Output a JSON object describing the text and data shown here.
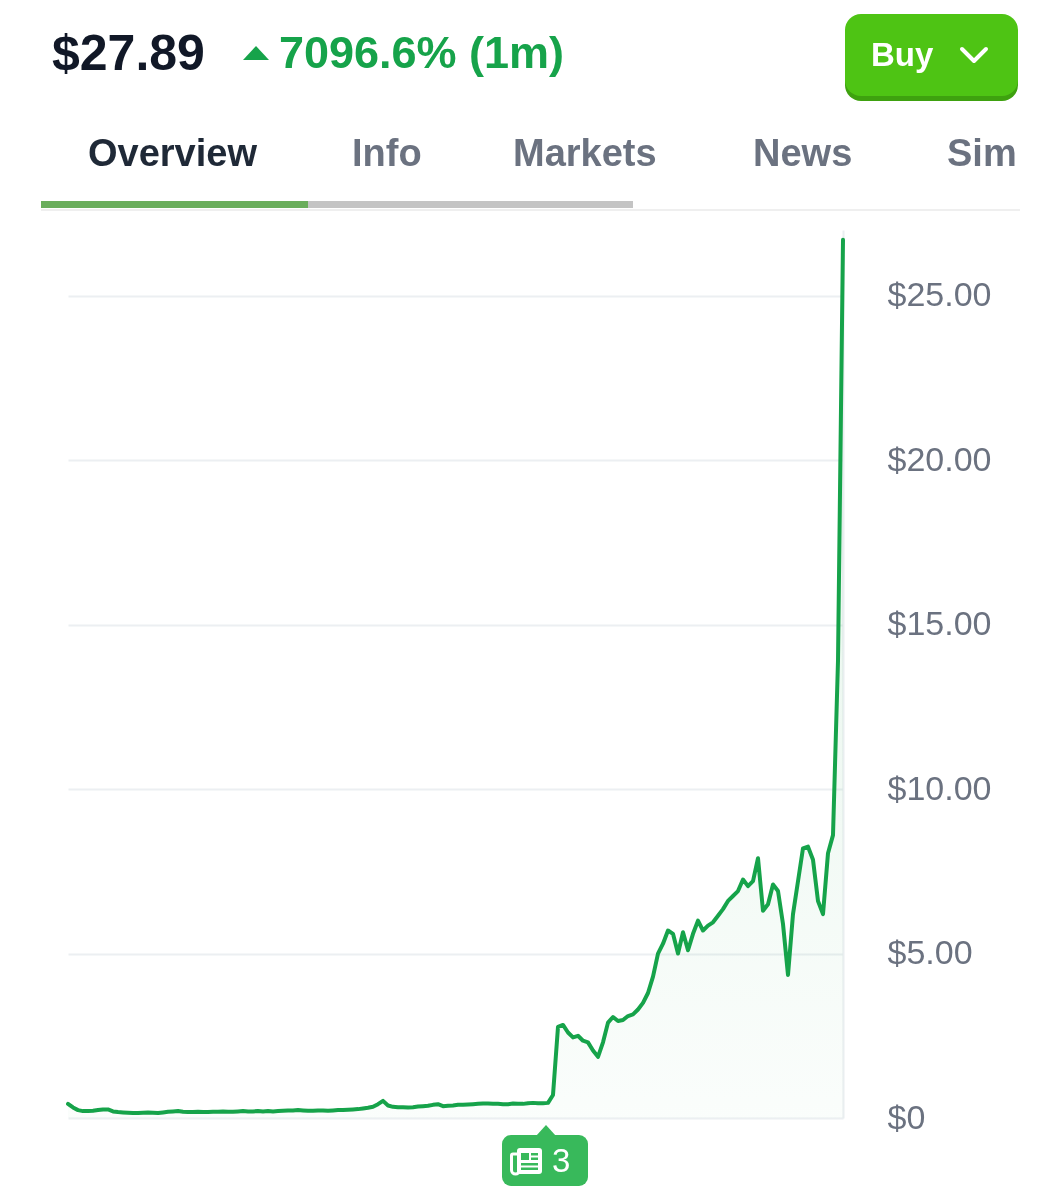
{
  "chart_data": {
    "type": "area",
    "title": "$27.89",
    "subtitle": "7096.6% (1m)",
    "annotations": [
      "Overview",
      "Info",
      "Markets",
      "News",
      "Sim",
      "Buy",
      "3"
    ],
    "categories": [
      null,
      null,
      null,
      null,
      null,
      null,
      null,
      null,
      null,
      null,
      null,
      null,
      null,
      null,
      null,
      null,
      null,
      null,
      null,
      null,
      null,
      null,
      null,
      null,
      null,
      null,
      null,
      null,
      null,
      null,
      null,
      null,
      null,
      null,
      null,
      null,
      null,
      null,
      null,
      null,
      null,
      null,
      null,
      null,
      null,
      null,
      null,
      null,
      null,
      null,
      null,
      null,
      null,
      null,
      null,
      null,
      null,
      null,
      null,
      null,
      null,
      null,
      null,
      null,
      null,
      null,
      null,
      null,
      null,
      null,
      null,
      null,
      null,
      null,
      null,
      null,
      null,
      null,
      null,
      null,
      null,
      null,
      null,
      null,
      null,
      null,
      null,
      null,
      null,
      null,
      null,
      null,
      null,
      null,
      null,
      null,
      null,
      null,
      null,
      null,
      null,
      null,
      null,
      null,
      null,
      null,
      null,
      null,
      null,
      null,
      null,
      null,
      null,
      null,
      null,
      null,
      null,
      null,
      null,
      null,
      null,
      null,
      null,
      null,
      null,
      null,
      null,
      null,
      null,
      null,
      null,
      null,
      null,
      null,
      null,
      null,
      null,
      null,
      null,
      null,
      null,
      null,
      null,
      null,
      null,
      null,
      null,
      null,
      null,
      null,
      null,
      null,
      null,
      null,
      null,
      null
    ],
    "values": [
      0.43,
      0.32,
      0.24,
      0.21,
      0.21,
      0.22,
      0.24,
      0.26,
      0.26,
      0.2,
      0.18,
      0.17,
      0.16,
      0.15,
      0.15,
      0.16,
      0.17,
      0.16,
      0.15,
      0.17,
      0.19,
      0.2,
      0.21,
      0.19,
      0.18,
      0.18,
      0.19,
      0.18,
      0.18,
      0.19,
      0.19,
      0.2,
      0.19,
      0.19,
      0.2,
      0.21,
      0.2,
      0.2,
      0.21,
      0.2,
      0.21,
      0.2,
      0.21,
      0.22,
      0.23,
      0.23,
      0.24,
      0.23,
      0.22,
      0.22,
      0.23,
      0.23,
      0.22,
      0.23,
      0.24,
      0.24,
      0.25,
      0.26,
      0.27,
      0.29,
      0.31,
      0.34,
      0.42,
      0.52,
      0.38,
      0.34,
      0.33,
      0.33,
      0.32,
      0.33,
      0.35,
      0.36,
      0.37,
      0.4,
      0.42,
      0.36,
      0.37,
      0.38,
      0.4,
      0.4,
      0.41,
      0.42,
      0.43,
      0.44,
      0.44,
      0.43,
      0.43,
      0.42,
      0.42,
      0.44,
      0.43,
      0.43,
      0.45,
      0.46,
      0.45,
      0.45,
      0.46,
      0.7,
      2.77,
      2.83,
      2.6,
      2.45,
      2.5,
      2.35,
      2.3,
      2.05,
      1.86,
      2.3,
      2.9,
      3.07,
      2.95,
      2.98,
      3.1,
      3.15,
      3.3,
      3.5,
      3.8,
      4.3,
      5.0,
      5.3,
      5.7,
      5.6,
      5.0,
      5.65,
      5.1,
      5.6,
      6.0,
      5.7,
      5.85,
      5.95,
      6.15,
      6.35,
      6.6,
      6.75,
      6.9,
      7.25,
      7.05,
      7.2,
      7.9,
      6.3,
      6.5,
      7.1,
      6.9,
      5.9,
      4.35,
      6.2,
      7.2,
      8.2,
      8.25,
      7.85,
      6.6,
      6.2,
      8.05,
      8.6,
      13.9,
      26.7
    ],
    "color": "#16a34a",
    "ylim": [
      0,
      27
    ],
    "yticks": [
      {
        "value": 0,
        "label": "$0"
      },
      {
        "value": 5,
        "label": "$5.00"
      },
      {
        "value": 10,
        "label": "$10.00"
      },
      {
        "value": 15,
        "label": "$15.00"
      },
      {
        "value": 20,
        "label": "$20.00"
      },
      {
        "value": 25,
        "label": "$25.00"
      }
    ],
    "grid": "y"
  }
}
